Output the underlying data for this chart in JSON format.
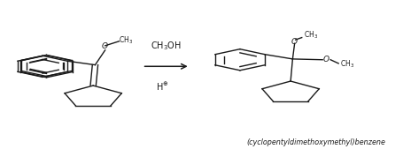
{
  "background_color": "#ffffff",
  "arrow_label_top": "CH$_3$OH",
  "arrow_label_bottom": "H$^{\\oplus}$",
  "product_label": "(cyclopentyldimethoxymethyl)benzene",
  "text_color": "#1a1a1a",
  "line_color": "#1a1a1a",
  "figsize": [
    4.56,
    1.69
  ],
  "dpi": 100
}
